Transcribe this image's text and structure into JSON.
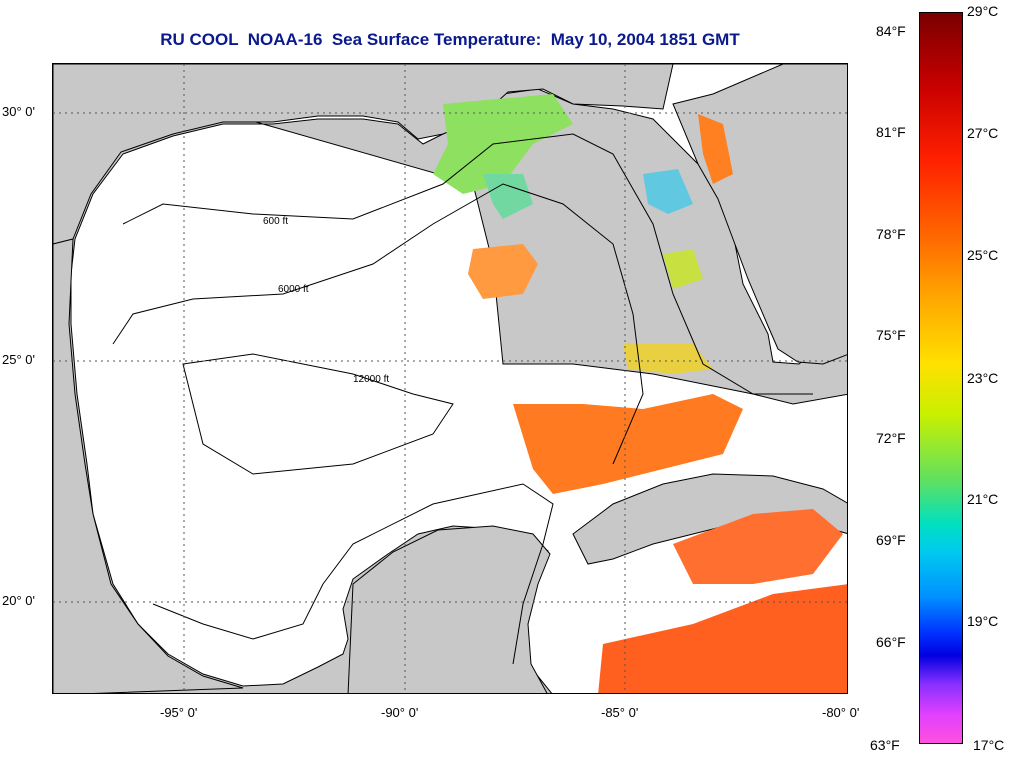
{
  "title": "RU COOL  NOAA-16  Sea Surface Temperature:  May 10, 2004 1851 GMT",
  "lat_labels": [
    "30° 0'",
    "25° 0'",
    "20° 0'"
  ],
  "lon_labels": [
    "-95° 0'",
    "-90° 0'",
    "-85° 0'",
    "-80° 0'"
  ],
  "contour_labels": [
    "600 ft",
    "6000 ft",
    "12000 ft"
  ],
  "colorbar": {
    "f_labels": [
      "84°F",
      "81°F",
      "78°F",
      "75°F",
      "72°F",
      "69°F",
      "66°F",
      "63°F"
    ],
    "c_labels": [
      "29°C",
      "27°C",
      "25°C",
      "23°C",
      "21°C",
      "19°C",
      "17°C"
    ]
  },
  "colors": {
    "title": "#0a1a8c",
    "land": "#c8c8c8",
    "no_data": "#ffffff",
    "sst_warm": "#ff7a20",
    "sst_cool": "#60e060"
  }
}
